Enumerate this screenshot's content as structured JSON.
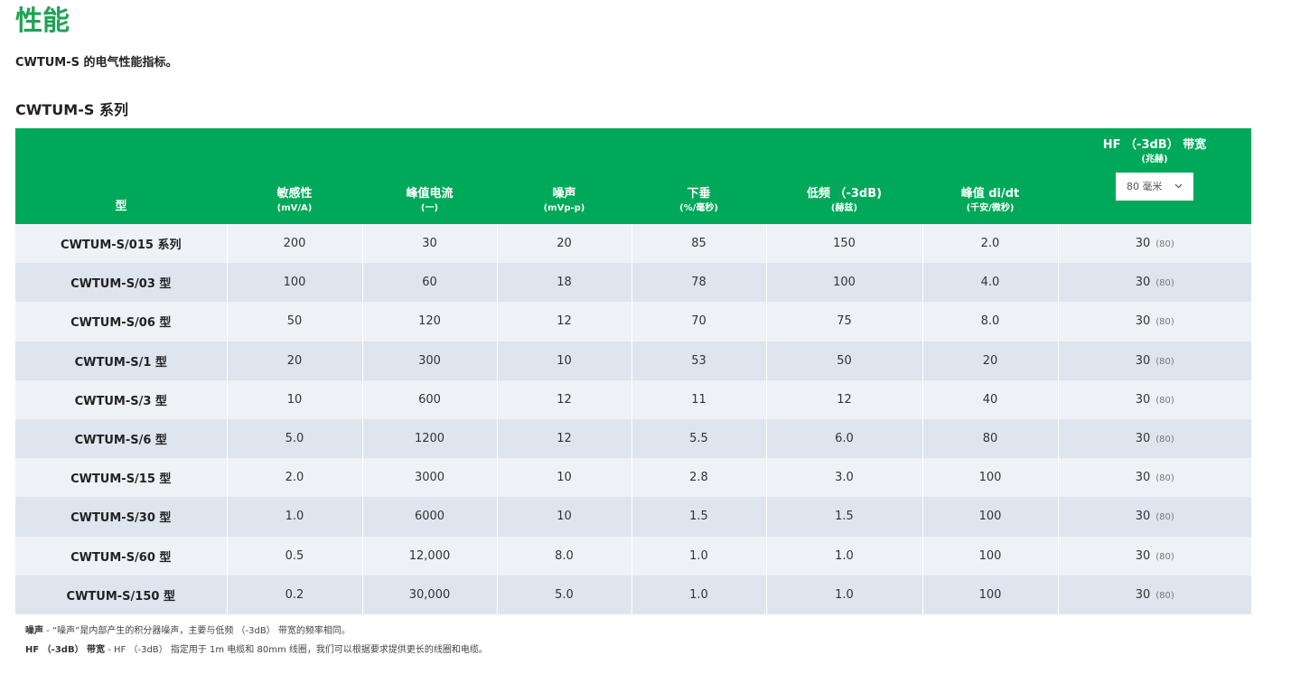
{
  "page": {
    "title": "性能",
    "subtitle": "CWTUM-S 的电气性能指标。",
    "section_title": "CWTUM-S 系列"
  },
  "table": {
    "headers": [
      {
        "main": "型",
        "unit": ""
      },
      {
        "main": "敏感性",
        "unit": "(mV/A)"
      },
      {
        "main": "峰值电流",
        "unit": "(一)"
      },
      {
        "main": "噪声",
        "unit": "(mVp-p)"
      },
      {
        "main": "下垂",
        "unit": "(%/毫秒)"
      },
      {
        "main": "低频 （-3dB)",
        "unit": "(赫兹)"
      },
      {
        "main": "峰值 di/dt",
        "unit": "(千安/微秒)"
      },
      {
        "main": "HF （-3dB） 带宽",
        "unit": "(兆赫)"
      }
    ],
    "hf_select": {
      "value": "80 毫米",
      "icon": "chevron-down-icon"
    },
    "rows": [
      {
        "model": "CWTUM-S/015 系列",
        "sensitivity": "200",
        "peak_current": "30",
        "noise": "20",
        "droop": "85",
        "lf": "150",
        "didt": "2.0",
        "hf": "30",
        "hf_alt": "(80)"
      },
      {
        "model": "CWTUM-S/03 型",
        "sensitivity": "100",
        "peak_current": "60",
        "noise": "18",
        "droop": "78",
        "lf": "100",
        "didt": "4.0",
        "hf": "30",
        "hf_alt": "(80)"
      },
      {
        "model": "CWTUM-S/06 型",
        "sensitivity": "50",
        "peak_current": "120",
        "noise": "12",
        "droop": "70",
        "lf": "75",
        "didt": "8.0",
        "hf": "30",
        "hf_alt": "(80)"
      },
      {
        "model": "CWTUM-S/1 型",
        "sensitivity": "20",
        "peak_current": "300",
        "noise": "10",
        "droop": "53",
        "lf": "50",
        "didt": "20",
        "hf": "30",
        "hf_alt": "(80)"
      },
      {
        "model": "CWTUM-S/3 型",
        "sensitivity": "10",
        "peak_current": "600",
        "noise": "12",
        "droop": "11",
        "lf": "12",
        "didt": "40",
        "hf": "30",
        "hf_alt": "(80)"
      },
      {
        "model": "CWTUM-S/6 型",
        "sensitivity": "5.0",
        "peak_current": "1200",
        "noise": "12",
        "droop": "5.5",
        "lf": "6.0",
        "didt": "80",
        "hf": "30",
        "hf_alt": "(80)"
      },
      {
        "model": "CWTUM-S/15 型",
        "sensitivity": "2.0",
        "peak_current": "3000",
        "noise": "10",
        "droop": "2.8",
        "lf": "3.0",
        "didt": "100",
        "hf": "30",
        "hf_alt": "(80)"
      },
      {
        "model": "CWTUM-S/30 型",
        "sensitivity": "1.0",
        "peak_current": "6000",
        "noise": "10",
        "droop": "1.5",
        "lf": "1.5",
        "didt": "100",
        "hf": "30",
        "hf_alt": "(80)"
      },
      {
        "model": "CWTUM-S/60 型",
        "sensitivity": "0.5",
        "peak_current": "12,000",
        "noise": "8.0",
        "droop": "1.0",
        "lf": "1.0",
        "didt": "100",
        "hf": "30",
        "hf_alt": "(80)"
      },
      {
        "model": "CWTUM-S/150 型",
        "sensitivity": "0.2",
        "peak_current": "30,000",
        "noise": "5.0",
        "droop": "1.0",
        "lf": "1.0",
        "didt": "100",
        "hf": "30",
        "hf_alt": "(80)"
      }
    ]
  },
  "footnotes": [
    {
      "label": "噪声",
      "text": " - “噪声”是内部产生的积分器噪声，主要与低频 （-3dB） 带宽的频率相同。"
    },
    {
      "label": "HF （-3dB） 带宽",
      "text": " - HF （-3dB） 指定用于 1m 电缆和 80mm 线圈，我们可以根据要求提供更长的线圈和电缆。"
    }
  ],
  "colors": {
    "accent": "#00a859",
    "title": "#1fa354",
    "row_odd": "#eef1f6",
    "row_even": "#dfe5ee"
  }
}
